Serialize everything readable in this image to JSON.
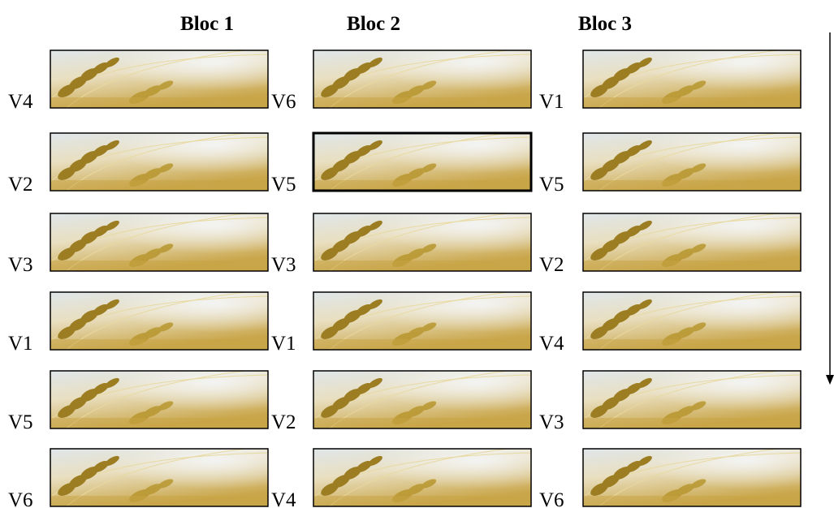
{
  "blocks": [
    {
      "title": "Bloc 1",
      "plots": [
        "V4",
        "V2",
        "V3",
        "V1",
        "V5",
        "V6"
      ]
    },
    {
      "title": "Bloc 2",
      "plots": [
        "V6",
        "V5",
        "V3",
        "V1",
        "V2",
        "V4"
      ]
    },
    {
      "title": "Bloc 3",
      "plots": [
        "V1",
        "V5",
        "V2",
        "V4",
        "V3",
        "V6"
      ]
    }
  ]
}
